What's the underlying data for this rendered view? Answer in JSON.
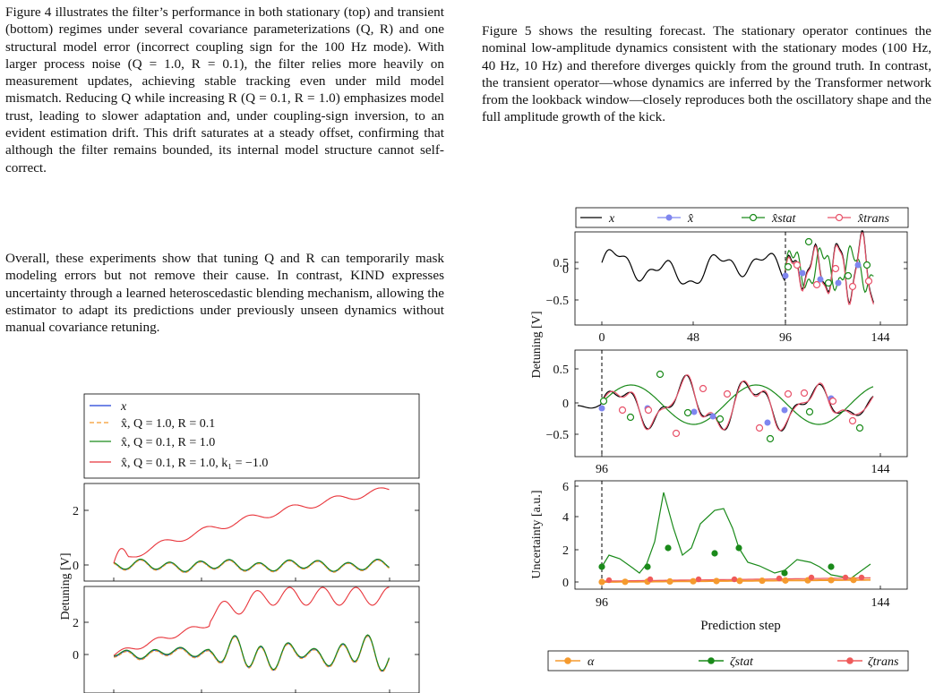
{
  "text": {
    "left_p1": "Figure 4 illustrates the filter’s performance in both stationary (top) and transient (bottom) regimes under several covariance parameterizations (Q, R) and one structural model error (incorrect coupling sign for the 100 Hz mode). With larger process noise (Q = 1.0, R = 0.1), the filter relies more heavily on measurement updates, achieving stable tracking even under mild model mismatch. Reducing Q while increasing R (Q = 0.1, R = 1.0) emphasizes model trust, leading to slower adaptation and, under coupling-sign inversion, to an evident estimation drift. This drift saturates at a steady offset, confirming that although the filter remains bounded, its internal model structure cannot self-correct.",
    "left_p2": "Overall, these experiments show that tuning Q and R can temporarily mask modeling errors but not remove their cause. In contrast, KIND expresses uncertainty through a learned heteroscedastic blending mechanism, allowing the estimator to adapt its predictions under previously unseen dynamics without manual covariance retuning.",
    "right_p1": "Figure 5 shows the resulting forecast. The stationary operator continues the nominal low-amplitude dynamics consistent with the stationary modes (100 Hz, 40 Hz, 10 Hz) and therefore diverges quickly from the ground truth. In contrast, the transient operator—whose dynamics are inferred by the Transformer network from the lookback window—closely reproduces both the oscillatory shape and the full amplitude growth of the kick."
  },
  "colors": {
    "black": "#000000",
    "blue": "#1f3fd8",
    "orange": "#f59a2e",
    "green": "#1a8a1a",
    "red": "#e8353b",
    "lightblue": "#7f86ef",
    "salmon": "#ef5a5a",
    "pink": "#e8536a"
  },
  "fig4": {
    "legend": [
      "x",
      "x̂, Q = 1.0, R = 0.1",
      "x̂, Q = 0.1, R = 1.0",
      "x̂, Q = 0.1, R = 1.0, k₁ = −1.0"
    ],
    "ylabel": "Detuning [V]",
    "top_ticks": [
      "2",
      "0"
    ],
    "bottom_ticks": [
      "2",
      "0"
    ]
  },
  "fig5": {
    "legend_top": [
      "x",
      "x̂",
      "x̂stat",
      "x̂trans"
    ],
    "legend_bottom": [
      "α",
      "ζstat",
      "ζtrans"
    ],
    "ylabel_detuning": "Detuning [V]",
    "ylabel_uncertainty": "Uncertainty [a.u.]",
    "xlabel": "Prediction step",
    "p1_yticks": [
      "0.5",
      "0",
      "−0.5"
    ],
    "p1_xticks": [
      "0",
      "48",
      "96",
      "144"
    ],
    "p2_yticks": [
      "0.5",
      "0",
      "−0.5"
    ],
    "p2_xticks": [
      "96",
      "144"
    ],
    "p3_yticks": [
      "6",
      "4",
      "2",
      "0"
    ],
    "p3_xticks": [
      "96",
      "144"
    ]
  }
}
